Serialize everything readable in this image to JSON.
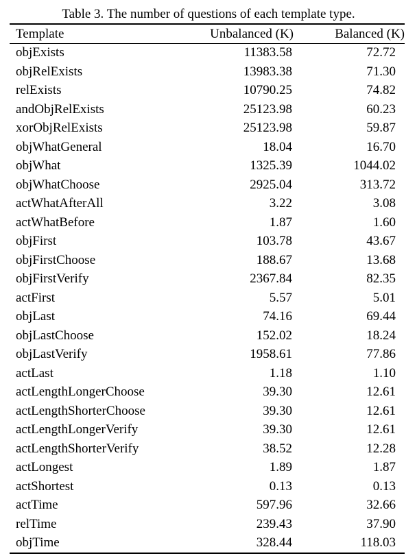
{
  "caption": "Table 3. The number of questions of each template type.",
  "headers": {
    "template": "Template",
    "unbalanced": "Unbalanced (K)",
    "balanced": "Balanced (K)"
  },
  "rows": [
    {
      "template": "objExists",
      "unbalanced": "11383.58",
      "balanced": "72.72"
    },
    {
      "template": "objRelExists",
      "unbalanced": "13983.38",
      "balanced": "71.30"
    },
    {
      "template": "relExists",
      "unbalanced": "10790.25",
      "balanced": "74.82"
    },
    {
      "template": "andObjRelExists",
      "unbalanced": "25123.98",
      "balanced": "60.23"
    },
    {
      "template": "xorObjRelExists",
      "unbalanced": "25123.98",
      "balanced": "59.87"
    },
    {
      "template": "objWhatGeneral",
      "unbalanced": "18.04",
      "balanced": "16.70"
    },
    {
      "template": "objWhat",
      "unbalanced": "1325.39",
      "balanced": "1044.02"
    },
    {
      "template": "objWhatChoose",
      "unbalanced": "2925.04",
      "balanced": "313.72"
    },
    {
      "template": "actWhatAfterAll",
      "unbalanced": "3.22",
      "balanced": "3.08"
    },
    {
      "template": "actWhatBefore",
      "unbalanced": "1.87",
      "balanced": "1.60"
    },
    {
      "template": "objFirst",
      "unbalanced": "103.78",
      "balanced": "43.67"
    },
    {
      "template": "objFirstChoose",
      "unbalanced": "188.67",
      "balanced": "13.68"
    },
    {
      "template": "objFirstVerify",
      "unbalanced": "2367.84",
      "balanced": "82.35"
    },
    {
      "template": "actFirst",
      "unbalanced": "5.57",
      "balanced": "5.01"
    },
    {
      "template": "objLast",
      "unbalanced": "74.16",
      "balanced": "69.44"
    },
    {
      "template": "objLastChoose",
      "unbalanced": "152.02",
      "balanced": "18.24"
    },
    {
      "template": "objLastVerify",
      "unbalanced": "1958.61",
      "balanced": "77.86"
    },
    {
      "template": "actLast",
      "unbalanced": "1.18",
      "balanced": "1.10"
    },
    {
      "template": "actLengthLongerChoose",
      "unbalanced": "39.30",
      "balanced": "12.61"
    },
    {
      "template": "actLengthShorterChoose",
      "unbalanced": "39.30",
      "balanced": "12.61"
    },
    {
      "template": "actLengthLongerVerify",
      "unbalanced": "39.30",
      "balanced": "12.61"
    },
    {
      "template": "actLengthShorterVerify",
      "unbalanced": "38.52",
      "balanced": "12.28"
    },
    {
      "template": "actLongest",
      "unbalanced": "1.89",
      "balanced": "1.87"
    },
    {
      "template": "actShortest",
      "unbalanced": "0.13",
      "balanced": "0.13"
    },
    {
      "template": "actTime",
      "unbalanced": "597.96",
      "balanced": "32.66"
    },
    {
      "template": "relTime",
      "unbalanced": "239.43",
      "balanced": "37.90"
    },
    {
      "template": "objTime",
      "unbalanced": "328.44",
      "balanced": "118.03"
    }
  ]
}
